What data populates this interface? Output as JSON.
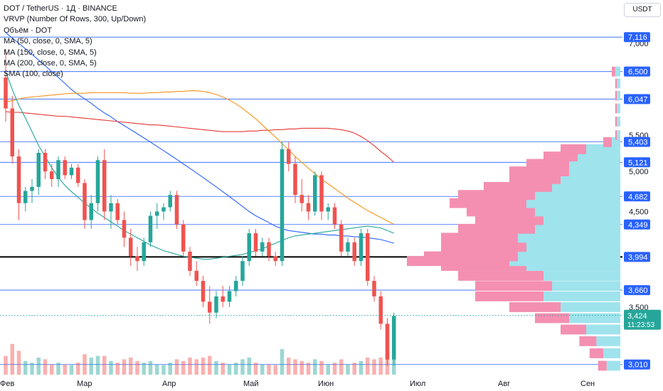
{
  "header": {
    "title": "DOT / TetherUS · 1Д · BINANCE",
    "indicators": [
      "VRVP (Number Of Rows, 300, Up/Down)",
      "Объём · DOT",
      "MA (50, close, 0, SMA, 5)",
      "MA (150, close, 0, SMA, 5)",
      "MA (200, close, 0, SMA, 5)",
      "SMA (100, close)"
    ],
    "currency": "USDT"
  },
  "colors": {
    "up": "#26a69a",
    "down": "#ef5350",
    "ma50": "#26a69a",
    "ma150": "#f7931a",
    "ma200": "#e53935",
    "sma100": "#2962ff",
    "hline": "#2962ff",
    "vp_up": "#9fe3ed",
    "vp_down": "#f48fb1",
    "badge": "#2962ff",
    "current": "#26a69a"
  },
  "chart_data": {
    "type": "candlestick",
    "xlabels": [
      "Фев",
      "Мар",
      "Апр",
      "Май",
      "Июн",
      "Июл",
      "Авг",
      "Сен"
    ],
    "yticks": [
      "7,000",
      "5,500",
      "5,000",
      "4,500",
      "3,500"
    ],
    "y_scale": "log",
    "price_levels": [
      "7,116",
      "6,500",
      "6,047",
      "5,403",
      "5,121",
      "4,682",
      "4,349",
      "3,994",
      "3,660",
      "3,010"
    ],
    "key_level": 3.994,
    "current_price": {
      "value": "3,424",
      "countdown": "11:23:53"
    },
    "candles": [
      [
        6.4,
        6.9,
        5.7,
        5.9
      ],
      [
        5.9,
        6.1,
        5.1,
        5.2
      ],
      [
        5.2,
        5.3,
        4.4,
        4.6
      ],
      [
        4.6,
        4.8,
        4.5,
        4.75
      ],
      [
        4.75,
        4.9,
        4.6,
        4.8
      ],
      [
        4.8,
        5.3,
        4.7,
        5.25
      ],
      [
        5.25,
        5.3,
        4.9,
        5.0
      ],
      [
        5.0,
        5.1,
        4.8,
        4.9
      ],
      [
        4.9,
        5.2,
        4.8,
        5.15
      ],
      [
        5.15,
        5.2,
        4.9,
        4.95
      ],
      [
        4.95,
        5.1,
        4.9,
        5.05
      ],
      [
        5.05,
        5.1,
        4.8,
        4.85
      ],
      [
        4.85,
        4.9,
        4.3,
        4.4
      ],
      [
        4.4,
        4.7,
        4.3,
        4.6
      ],
      [
        4.6,
        5.2,
        4.5,
        5.15
      ],
      [
        5.15,
        5.3,
        4.4,
        4.5
      ],
      [
        4.5,
        4.7,
        4.3,
        4.6
      ],
      [
        4.6,
        4.65,
        4.35,
        4.4
      ],
      [
        4.4,
        4.5,
        4.1,
        4.2
      ],
      [
        4.2,
        4.3,
        3.9,
        4.0
      ],
      [
        4.0,
        4.1,
        3.85,
        3.95
      ],
      [
        3.95,
        4.2,
        3.9,
        4.15
      ],
      [
        4.15,
        4.5,
        4.1,
        4.45
      ],
      [
        4.45,
        4.6,
        4.3,
        4.5
      ],
      [
        4.5,
        4.6,
        4.4,
        4.55
      ],
      [
        4.55,
        4.75,
        4.5,
        4.7
      ],
      [
        4.7,
        4.75,
        4.3,
        4.35
      ],
      [
        4.35,
        4.4,
        4.0,
        4.05
      ],
      [
        4.05,
        4.1,
        3.8,
        3.85
      ],
      [
        3.85,
        3.95,
        3.7,
        3.75
      ],
      [
        3.75,
        3.8,
        3.5,
        3.55
      ],
      [
        3.55,
        3.7,
        3.35,
        3.45
      ],
      [
        3.45,
        3.65,
        3.4,
        3.6
      ],
      [
        3.6,
        3.7,
        3.5,
        3.55
      ],
      [
        3.55,
        3.7,
        3.5,
        3.65
      ],
      [
        3.65,
        3.8,
        3.6,
        3.75
      ],
      [
        3.75,
        4.0,
        3.7,
        3.95
      ],
      [
        3.95,
        4.3,
        3.9,
        4.25
      ],
      [
        4.25,
        4.3,
        4.0,
        4.05
      ],
      [
        4.05,
        4.2,
        4.0,
        4.15
      ],
      [
        4.15,
        4.2,
        3.95,
        4.0
      ],
      [
        4.0,
        4.05,
        3.9,
        3.95
      ],
      [
        3.95,
        5.4,
        3.9,
        5.3
      ],
      [
        5.3,
        5.4,
        5.0,
        5.1
      ],
      [
        5.1,
        5.2,
        4.6,
        4.7
      ],
      [
        4.7,
        4.9,
        4.5,
        4.6
      ],
      [
        4.6,
        4.7,
        4.4,
        4.5
      ],
      [
        4.5,
        5.0,
        4.45,
        4.95
      ],
      [
        4.95,
        5.0,
        4.4,
        4.5
      ],
      [
        4.5,
        4.6,
        4.4,
        4.55
      ],
      [
        4.55,
        4.6,
        4.3,
        4.35
      ],
      [
        4.35,
        4.4,
        4.0,
        4.05
      ],
      [
        4.05,
        4.2,
        4.0,
        4.15
      ],
      [
        4.15,
        4.2,
        3.9,
        3.95
      ],
      [
        3.95,
        4.3,
        3.9,
        4.25
      ],
      [
        4.25,
        4.3,
        3.7,
        3.75
      ],
      [
        3.75,
        3.8,
        3.55,
        3.6
      ],
      [
        3.6,
        3.65,
        3.3,
        3.35
      ],
      [
        3.35,
        3.4,
        3.0,
        3.05
      ],
      [
        3.05,
        3.45,
        3.0,
        3.42
      ]
    ],
    "volumes": [
      0.55,
      0.9,
      0.7,
      0.4,
      0.35,
      0.5,
      0.45,
      0.3,
      0.35,
      0.3,
      0.28,
      0.35,
      0.6,
      0.5,
      0.55,
      0.55,
      0.4,
      0.35,
      0.45,
      0.5,
      0.4,
      0.35,
      0.4,
      0.3,
      0.28,
      0.35,
      0.45,
      0.4,
      0.5,
      0.45,
      0.5,
      0.55,
      0.4,
      0.35,
      0.3,
      0.35,
      0.45,
      0.5,
      0.35,
      0.3,
      0.3,
      0.28,
      0.75,
      0.5,
      0.45,
      0.4,
      0.35,
      0.45,
      0.4,
      0.3,
      0.35,
      0.45,
      0.3,
      0.35,
      0.4,
      0.5,
      0.45,
      0.5,
      0.6,
      0.45
    ],
    "ma50": [
      6.5,
      6.2,
      5.95,
      5.75,
      5.55,
      5.35,
      5.2,
      5.05,
      4.92,
      4.82,
      4.74,
      4.67,
      4.6,
      4.54,
      4.48,
      4.43,
      4.38,
      4.33,
      4.28,
      4.24,
      4.2,
      4.16,
      4.12,
      4.09,
      4.06,
      4.04,
      4.02,
      4.0,
      3.99,
      3.98,
      3.97,
      3.97,
      3.98,
      3.99,
      4.0,
      4.01,
      4.02,
      4.04,
      4.06,
      4.08,
      4.11,
      4.14,
      4.17,
      4.2,
      4.22,
      4.23,
      4.24,
      4.25,
      4.26,
      4.27,
      4.28,
      4.29,
      4.3,
      4.31,
      4.32,
      4.33,
      4.32,
      4.31,
      4.28,
      4.25
    ],
    "ma150": [
      6.0,
      6.02,
      6.05,
      6.07,
      6.08,
      6.09,
      6.1,
      6.11,
      6.12,
      6.13,
      6.14,
      6.14,
      6.14,
      6.15,
      6.15,
      6.15,
      6.15,
      6.15,
      6.15,
      6.14,
      6.14,
      6.14,
      6.15,
      6.15,
      6.16,
      6.16,
      6.17,
      6.17,
      6.18,
      6.18,
      6.17,
      6.15,
      6.12,
      6.08,
      6.03,
      5.97,
      5.9,
      5.82,
      5.74,
      5.65,
      5.56,
      5.47,
      5.38,
      5.29,
      5.2,
      5.12,
      5.04,
      4.97,
      4.9,
      4.84,
      4.78,
      4.72,
      4.66,
      4.61,
      4.56,
      4.51,
      4.47,
      4.43,
      4.39,
      4.35
    ],
    "ma200": [
      5.85,
      5.84,
      5.84,
      5.83,
      5.82,
      5.81,
      5.8,
      5.79,
      5.78,
      5.78,
      5.77,
      5.76,
      5.75,
      5.74,
      5.73,
      5.72,
      5.71,
      5.7,
      5.69,
      5.68,
      5.67,
      5.66,
      5.65,
      5.65,
      5.64,
      5.63,
      5.62,
      5.61,
      5.6,
      5.59,
      5.58,
      5.57,
      5.56,
      5.55,
      5.55,
      5.55,
      5.55,
      5.56,
      5.56,
      5.57,
      5.57,
      5.58,
      5.58,
      5.59,
      5.59,
      5.6,
      5.6,
      5.6,
      5.6,
      5.6,
      5.59,
      5.58,
      5.56,
      5.53,
      5.48,
      5.42,
      5.35,
      5.27,
      5.2,
      5.12
    ],
    "sma100": [
      7.2,
      7.1,
      7.0,
      6.9,
      6.8,
      6.7,
      6.6,
      6.5,
      6.4,
      6.3,
      6.2,
      6.12,
      6.05,
      5.98,
      5.9,
      5.83,
      5.77,
      5.7,
      5.64,
      5.58,
      5.52,
      5.46,
      5.4,
      5.34,
      5.28,
      5.22,
      5.16,
      5.1,
      5.04,
      4.98,
      4.92,
      4.86,
      4.8,
      4.74,
      4.68,
      4.62,
      4.56,
      4.5,
      4.45,
      4.41,
      4.37,
      4.33,
      4.3,
      4.28,
      4.27,
      4.26,
      4.25,
      4.24,
      4.24,
      4.23,
      4.23,
      4.22,
      4.22,
      4.21,
      4.21,
      4.2,
      4.19,
      4.18,
      4.16,
      4.14
    ],
    "volume_profile": [
      [
        3.0,
        0.08,
        0.05
      ],
      [
        3.1,
        0.1,
        0.08
      ],
      [
        3.2,
        0.14,
        0.1
      ],
      [
        3.3,
        0.2,
        0.15
      ],
      [
        3.4,
        0.3,
        0.2
      ],
      [
        3.5,
        0.35,
        0.3
      ],
      [
        3.6,
        0.45,
        0.4
      ],
      [
        3.7,
        0.4,
        0.45
      ],
      [
        3.8,
        0.45,
        0.5
      ],
      [
        3.9,
        0.55,
        0.5
      ],
      [
        3.95,
        0.65,
        0.6
      ],
      [
        4.0,
        0.6,
        0.55
      ],
      [
        4.1,
        0.55,
        0.5
      ],
      [
        4.2,
        0.6,
        0.45
      ],
      [
        4.3,
        0.5,
        0.45
      ],
      [
        4.4,
        0.45,
        0.4
      ],
      [
        4.5,
        0.5,
        0.4
      ],
      [
        4.6,
        0.55,
        0.45
      ],
      [
        4.7,
        0.5,
        0.45
      ],
      [
        4.8,
        0.4,
        0.4
      ],
      [
        4.9,
        0.35,
        0.3
      ],
      [
        5.0,
        0.3,
        0.35
      ],
      [
        5.1,
        0.3,
        0.25
      ],
      [
        5.2,
        0.25,
        0.2
      ],
      [
        5.3,
        0.2,
        0.15
      ],
      [
        5.4,
        0.05,
        0.05
      ],
      [
        5.5,
        0.02,
        0.01
      ],
      [
        5.7,
        0.02,
        0.01
      ],
      [
        5.9,
        0.02,
        0.01
      ],
      [
        6.1,
        0.02,
        0.01
      ],
      [
        6.3,
        0.02,
        0.01
      ],
      [
        6.5,
        0.03,
        0.02
      ]
    ]
  }
}
